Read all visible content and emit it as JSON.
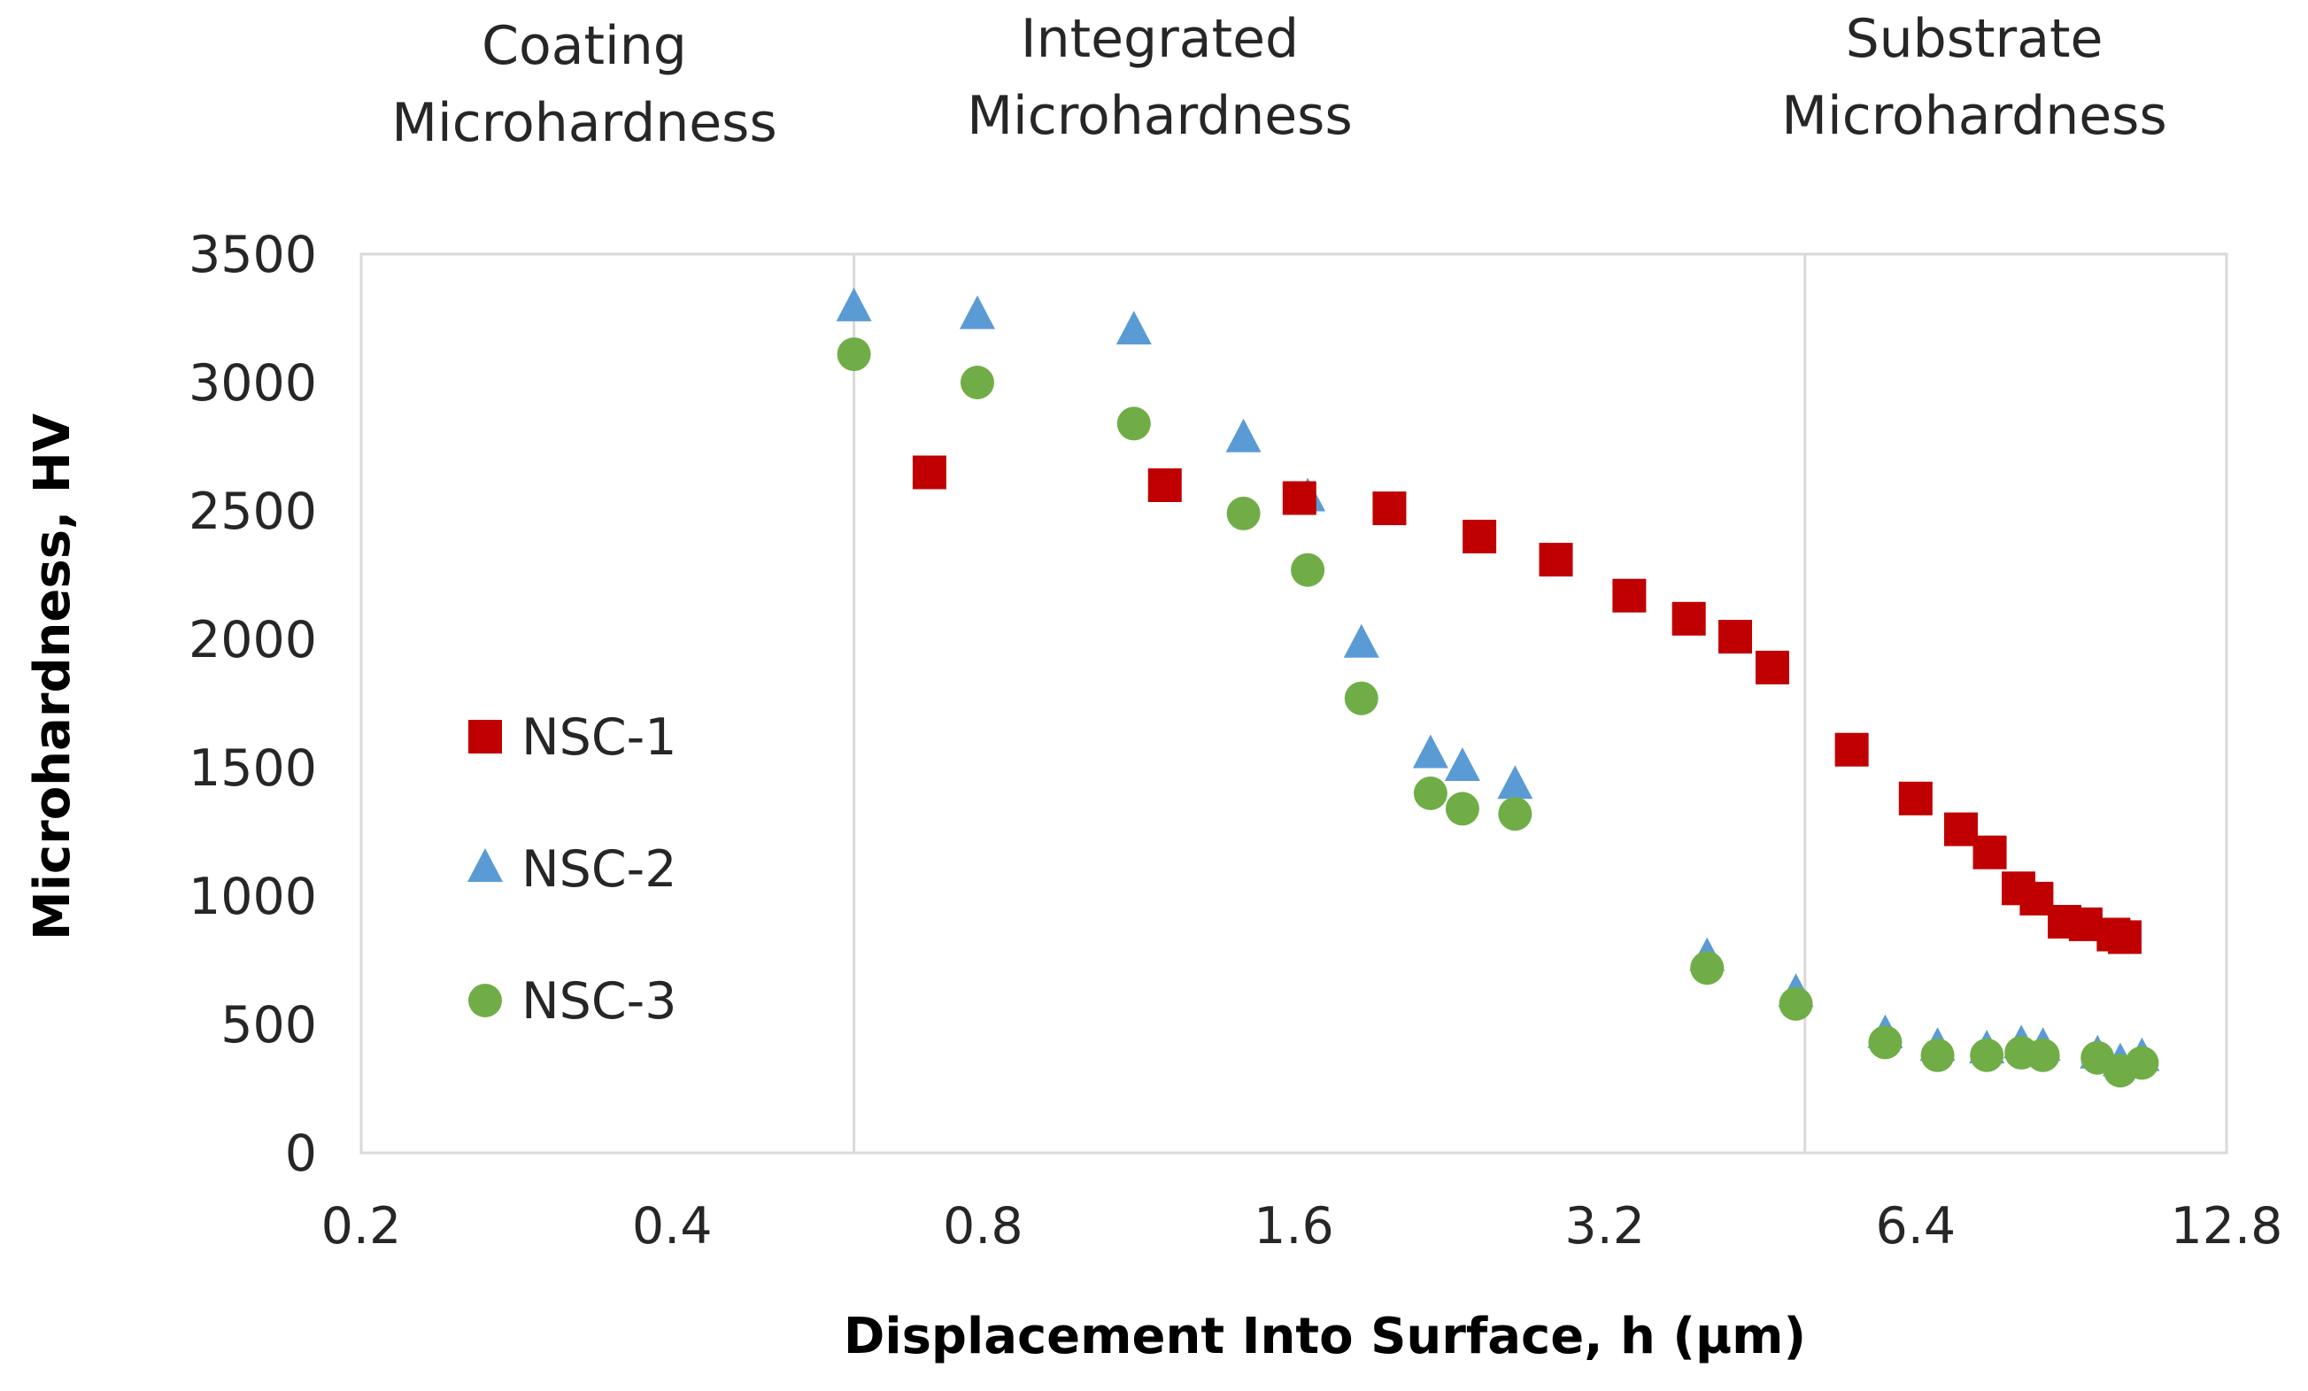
{
  "chart_data": {
    "type": "scatter",
    "title": "",
    "xlabel": "Displacement Into Surface, h (µm)",
    "ylabel": "Microhardness, HV",
    "x_scale": "log2",
    "xlim": [
      0.2,
      12.8
    ],
    "ylim": [
      0,
      3500
    ],
    "x_ticks": [
      0.2,
      0.4,
      0.8,
      1.6,
      3.2,
      6.4,
      12.8
    ],
    "x_tick_labels": [
      "0.2",
      "0.4",
      "0.8",
      "1.6",
      "3.2",
      "6.4",
      "12.8"
    ],
    "y_ticks": [
      0,
      500,
      1000,
      1500,
      2000,
      2500,
      3000,
      3500
    ],
    "y_tick_labels": [
      "0",
      "500",
      "1000",
      "1500",
      "2000",
      "2500",
      "3000",
      "3500"
    ],
    "grid": false,
    "legend_position": "left",
    "vertical_lines": [
      {
        "x": 0.6
      },
      {
        "x": 5.0
      }
    ],
    "region_labels": [
      {
        "lines": [
          "Coating",
          "Microhardness"
        ]
      },
      {
        "lines": [
          "Integrated",
          "Microhardness"
        ]
      },
      {
        "lines": [
          "Substrate",
          "Microhardness"
        ]
      }
    ],
    "series": [
      {
        "name": "NSC-1",
        "marker": "square",
        "color": "#C00000",
        "x": [
          0.71,
          1.2,
          1.62,
          1.98,
          2.42,
          2.87,
          3.38,
          3.86,
          4.28,
          4.65,
          5.55,
          6.4,
          7.08,
          7.55,
          8.05,
          8.38,
          8.92,
          9.35,
          9.95,
          10.2
        ],
        "y": [
          2650,
          2600,
          2550,
          2510,
          2400,
          2310,
          2170,
          2080,
          2010,
          1890,
          1570,
          1380,
          1260,
          1170,
          1030,
          990,
          900,
          890,
          850,
          840
        ]
      },
      {
        "name": "NSC-2",
        "marker": "triangle",
        "color": "#5B9BD5",
        "x": [
          0.6,
          0.79,
          1.12,
          1.43,
          1.65,
          1.86,
          2.17,
          2.33,
          2.62,
          4.02,
          4.9,
          5.98,
          6.72,
          7.5,
          8.1,
          8.5,
          9.6,
          10.1,
          10.6
        ],
        "y": [
          3290,
          3260,
          3200,
          2780,
          2550,
          1980,
          1550,
          1500,
          1430,
          760,
          620,
          460,
          410,
          400,
          420,
          410,
          380,
          350,
          370
        ]
      },
      {
        "name": "NSC-3",
        "marker": "circle",
        "color": "#70AD47",
        "x": [
          0.6,
          0.79,
          1.12,
          1.43,
          1.65,
          1.86,
          2.17,
          2.33,
          2.62,
          4.02,
          4.9,
          5.98,
          6.72,
          7.5,
          8.1,
          8.5,
          9.6,
          10.1,
          10.6
        ],
        "y": [
          3110,
          3000,
          2840,
          2490,
          2270,
          1770,
          1400,
          1340,
          1320,
          720,
          580,
          430,
          380,
          380,
          390,
          380,
          370,
          320,
          350
        ]
      }
    ]
  }
}
